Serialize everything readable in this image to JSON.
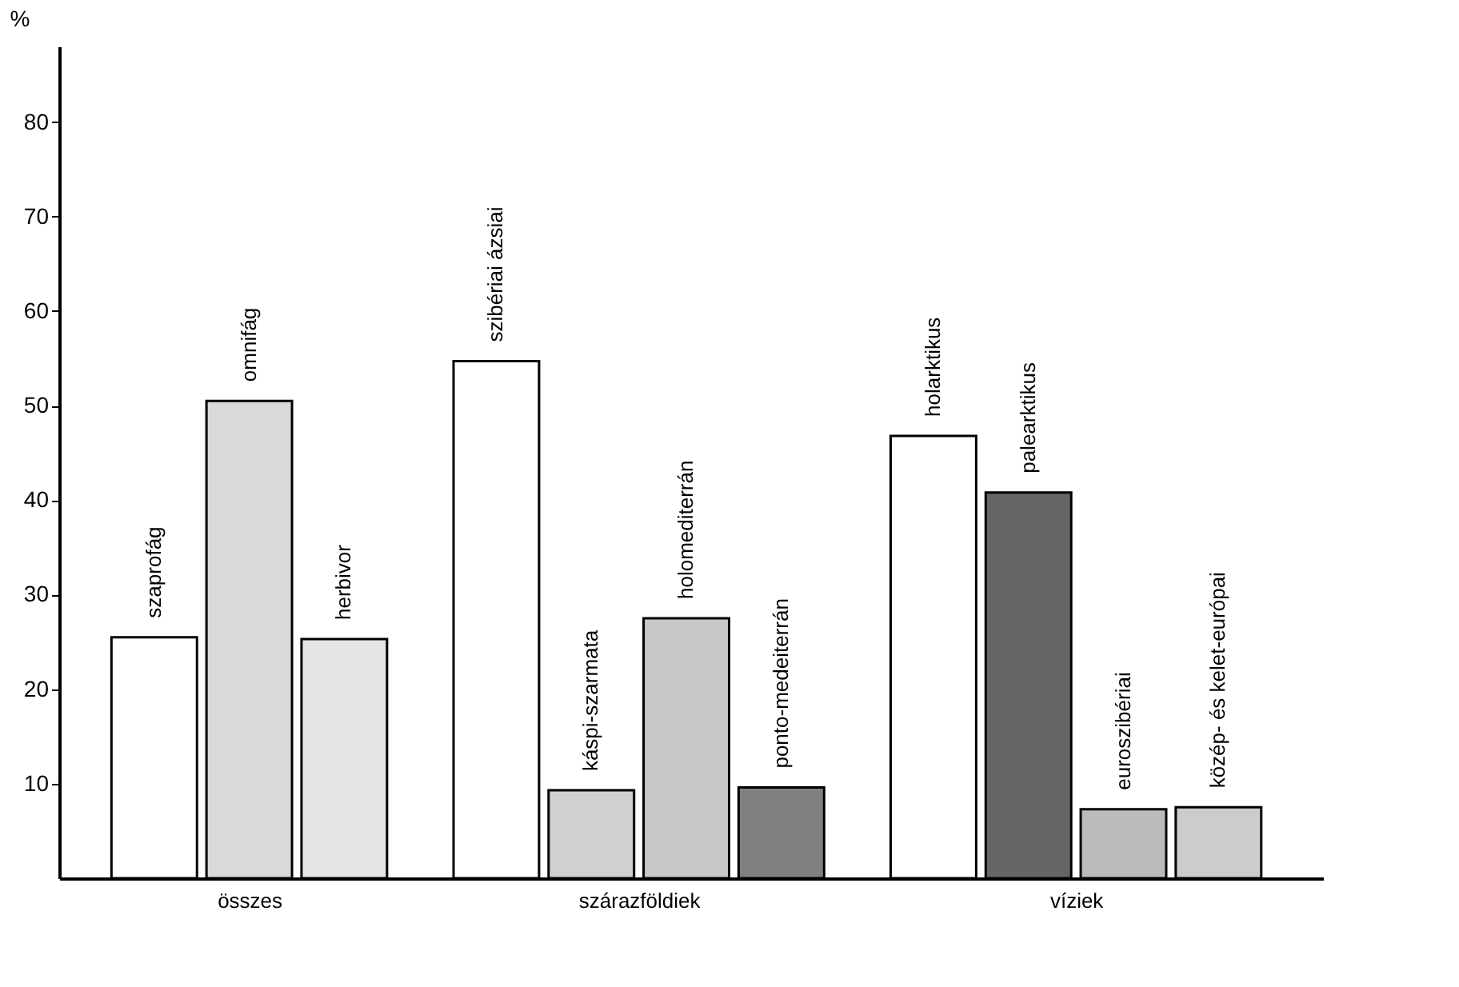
{
  "chart_data": {
    "type": "bar",
    "ylabel": "%",
    "categories": [
      "összes",
      "szárazföldiek",
      "víziek"
    ],
    "series": [
      {
        "name": "szaprofág",
        "color": "#ffffff",
        "values": [
          25.5,
          null,
          null
        ]
      },
      {
        "name": "omnifág",
        "color": "#d9d9d9",
        "values": [
          50.5,
          null,
          null
        ]
      },
      {
        "name": "herbivor",
        "color": "#e6e6e6",
        "values": [
          25.3,
          null,
          null
        ]
      },
      {
        "name": "szibériai ázsiai",
        "color": "#ffffff",
        "values": [
          null,
          54.7,
          null
        ]
      },
      {
        "name": "káspi-szarmata",
        "color": "#d0d0d0",
        "values": [
          null,
          9.3,
          null
        ]
      },
      {
        "name": "holomediterrán",
        "color": "#c8c8c8",
        "values": [
          null,
          27.5,
          null
        ]
      },
      {
        "name": "ponto-medeiterrán",
        "color": "#808080",
        "values": [
          null,
          9.6,
          null
        ]
      },
      {
        "name": "holarktikus",
        "color": "#ffffff",
        "values": [
          null,
          null,
          46.8
        ]
      },
      {
        "name": "palearktikus",
        "color": "#666666",
        "values": [
          null,
          null,
          40.8
        ]
      },
      {
        "name": "euroszibériai",
        "color": "#bbbbbb",
        "values": [
          null,
          null,
          7.3
        ]
      },
      {
        "name": "közép- és kelet-európai",
        "color": "#cccccc",
        "values": [
          null,
          null,
          7.5
        ]
      }
    ],
    "ylim": [
      0,
      88
    ],
    "yticks": [
      10,
      20,
      30,
      40,
      50,
      60,
      70,
      80
    ],
    "grid": false,
    "legend": false
  }
}
